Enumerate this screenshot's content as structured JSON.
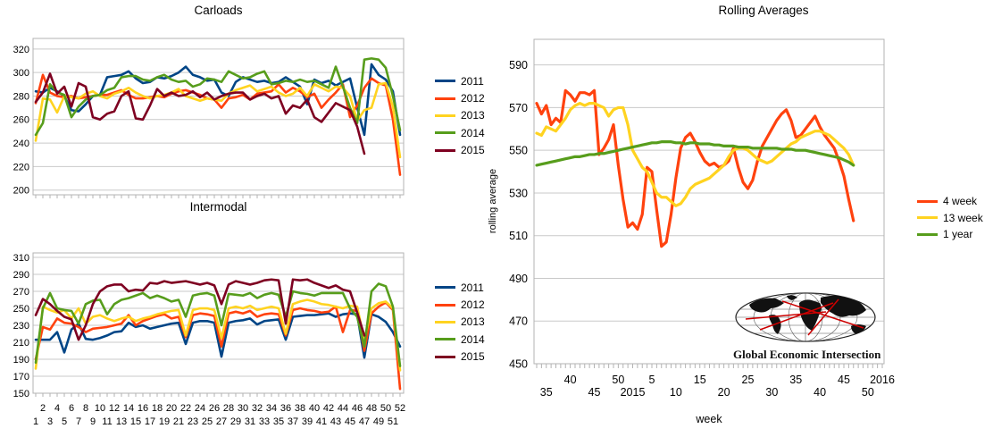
{
  "logo": {
    "text": "Global Economic Intersection"
  },
  "chart_data": [
    {
      "type": "line",
      "title": "Carloads",
      "ylim": [
        200,
        320
      ],
      "y_ticks": [
        200,
        220,
        240,
        260,
        280,
        300,
        320
      ],
      "x_range": "weeks 1-52",
      "grid": true,
      "legend_position": "right",
      "series": [
        {
          "name": "2011",
          "color": "#004586",
          "values": [
            284,
            283,
            287,
            284,
            280,
            268,
            267,
            273,
            280,
            281,
            296,
            297,
            298,
            301,
            295,
            291,
            292,
            296,
            295,
            297,
            300,
            305,
            298,
            296,
            293,
            294,
            283,
            280,
            292,
            296,
            294,
            292,
            293,
            291,
            292,
            296,
            292,
            288,
            273,
            294,
            291,
            293,
            289,
            292,
            295,
            270,
            247,
            307,
            298,
            294,
            284,
            247
          ]
        },
        {
          "name": "2012",
          "color": "#FF420E",
          "values": [
            274,
            298,
            283,
            280,
            279,
            280,
            278,
            279,
            280,
            281,
            281,
            283,
            285,
            281,
            278,
            278,
            279,
            280,
            279,
            282,
            284,
            285,
            283,
            281,
            278,
            277,
            270,
            278,
            279,
            281,
            277,
            282,
            283,
            284,
            290,
            283,
            287,
            284,
            279,
            282,
            270,
            277,
            283,
            290,
            262,
            272,
            287,
            295,
            291,
            289,
            260,
            213
          ]
        },
        {
          "name": "2013",
          "color": "#FFD320",
          "values": [
            242,
            278,
            277,
            266,
            280,
            279,
            278,
            282,
            284,
            280,
            278,
            282,
            284,
            287,
            283,
            280,
            278,
            280,
            281,
            283,
            286,
            280,
            278,
            276,
            278,
            277,
            276,
            282,
            285,
            287,
            289,
            284,
            286,
            288,
            283,
            280,
            282,
            287,
            280,
            290,
            287,
            284,
            288,
            287,
            280,
            259,
            268,
            270,
            290,
            291,
            271,
            228
          ]
        },
        {
          "name": "2014",
          "color": "#579D1C",
          "values": [
            247,
            257,
            290,
            283,
            281,
            262,
            271,
            277,
            280,
            281,
            285,
            287,
            296,
            297,
            297,
            294,
            293,
            296,
            298,
            294,
            292,
            293,
            288,
            290,
            295,
            294,
            292,
            301,
            298,
            295,
            296,
            299,
            301,
            290,
            291,
            293,
            292,
            294,
            292,
            293,
            290,
            287,
            305,
            288,
            270,
            257,
            311,
            312,
            311,
            304,
            280,
            251
          ]
        },
        {
          "name": "2015",
          "color": "#7E0021",
          "values": [
            275,
            283,
            299,
            282,
            288,
            271,
            291,
            288,
            262,
            260,
            265,
            267,
            280,
            284,
            261,
            260,
            272,
            286,
            280,
            283,
            280,
            281,
            284,
            279,
            283,
            277,
            280,
            282,
            283,
            283,
            277,
            280,
            282,
            278,
            280,
            265,
            272,
            270,
            277,
            262,
            258,
            266,
            274,
            271,
            268,
            254,
            231,
            null,
            null,
            null,
            null,
            null
          ]
        }
      ]
    },
    {
      "type": "line",
      "title": "Intermodal",
      "ylim": [
        150,
        310
      ],
      "y_ticks": [
        150,
        170,
        190,
        210,
        230,
        250,
        270,
        290,
        310
      ],
      "x_range": "weeks 1-52",
      "x_labels_row1": [
        "2",
        "4",
        "6",
        "8",
        "10",
        "12",
        "14",
        "16",
        "18",
        "20",
        "22",
        "24",
        "26",
        "28",
        "30",
        "32",
        "34",
        "36",
        "38",
        "40",
        "42",
        "44",
        "46",
        "48",
        "50",
        "52"
      ],
      "x_labels_row2": [
        "1",
        "3",
        "5",
        "7",
        "9",
        "11",
        "13",
        "15",
        "17",
        "19",
        "21",
        "23",
        "25",
        "27",
        "29",
        "31",
        "33",
        "35",
        "37",
        "39",
        "41",
        "43",
        "45",
        "47",
        "49",
        "51"
      ],
      "grid": true,
      "legend_position": "right",
      "series": [
        {
          "name": "2011",
          "color": "#004586",
          "values": [
            213,
            213,
            213,
            222,
            198,
            225,
            232,
            214,
            213,
            215,
            218,
            222,
            223,
            233,
            228,
            230,
            226,
            228,
            230,
            232,
            233,
            208,
            233,
            235,
            235,
            233,
            193,
            233,
            235,
            236,
            238,
            231,
            235,
            236,
            237,
            213,
            240,
            241,
            242,
            242,
            243,
            244,
            240,
            243,
            244,
            243,
            192,
            243,
            240,
            234,
            222,
            205
          ]
        },
        {
          "name": "2012",
          "color": "#FF420E",
          "values": [
            190,
            228,
            225,
            238,
            233,
            232,
            228,
            222,
            226,
            227,
            228,
            230,
            232,
            242,
            230,
            235,
            238,
            241,
            243,
            238,
            240,
            216,
            242,
            244,
            243,
            241,
            205,
            244,
            246,
            244,
            247,
            240,
            243,
            244,
            243,
            218,
            248,
            250,
            248,
            247,
            245,
            246,
            252,
            222,
            248,
            247,
            200,
            244,
            252,
            257,
            248,
            155
          ]
        },
        {
          "name": "2013",
          "color": "#FFD320",
          "values": [
            179,
            252,
            248,
            245,
            248,
            238,
            250,
            232,
            240,
            242,
            238,
            235,
            238,
            240,
            235,
            238,
            240,
            243,
            245,
            247,
            248,
            218,
            248,
            250,
            250,
            248,
            215,
            250,
            252,
            250,
            253,
            248,
            250,
            252,
            250,
            220,
            255,
            258,
            260,
            258,
            255,
            254,
            252,
            250,
            253,
            252,
            212,
            250,
            256,
            258,
            250,
            177
          ]
        },
        {
          "name": "2014",
          "color": "#579D1C",
          "values": [
            186,
            250,
            268,
            250,
            248,
            247,
            232,
            255,
            259,
            260,
            243,
            255,
            260,
            262,
            265,
            268,
            262,
            265,
            262,
            258,
            260,
            240,
            265,
            267,
            268,
            265,
            230,
            267,
            266,
            265,
            268,
            262,
            266,
            268,
            266,
            240,
            270,
            268,
            267,
            265,
            268,
            268,
            268,
            268,
            250,
            240,
            205,
            270,
            279,
            276,
            252,
            182
          ]
        },
        {
          "name": "2015",
          "color": "#7E0021",
          "values": [
            242,
            261,
            255,
            247,
            240,
            237,
            213,
            230,
            255,
            270,
            276,
            278,
            278,
            270,
            272,
            271,
            280,
            279,
            282,
            280,
            281,
            282,
            280,
            278,
            280,
            277,
            255,
            278,
            282,
            280,
            278,
            280,
            283,
            284,
            283,
            232,
            284,
            283,
            284,
            280,
            277,
            274,
            277,
            272,
            270,
            245,
            218,
            null,
            null,
            null,
            null,
            null
          ]
        }
      ]
    },
    {
      "type": "line",
      "title": "Rolling Averages",
      "ylabel": "rolling average",
      "xlabel": "week",
      "ylim": [
        450,
        590
      ],
      "y_ticks": [
        450,
        470,
        490,
        510,
        530,
        550,
        570,
        590
      ],
      "x_range": "2014 week 33 through 2016 week 1",
      "x_ticks": [
        {
          "label": "35",
          "i": 2,
          "row": 2
        },
        {
          "label": "40",
          "i": 7,
          "row": 1
        },
        {
          "label": "45",
          "i": 12,
          "row": 2
        },
        {
          "label": "50",
          "i": 17,
          "row": 1
        },
        {
          "label": "2015",
          "i": 20,
          "row": 2
        },
        {
          "label": "5",
          "i": 24,
          "row": 1
        },
        {
          "label": "10",
          "i": 29,
          "row": 2
        },
        {
          "label": "15",
          "i": 34,
          "row": 1
        },
        {
          "label": "20",
          "i": 39,
          "row": 2
        },
        {
          "label": "25",
          "i": 44,
          "row": 1
        },
        {
          "label": "30",
          "i": 49,
          "row": 2
        },
        {
          "label": "35",
          "i": 54,
          "row": 1
        },
        {
          "label": "40",
          "i": 59,
          "row": 2
        },
        {
          "label": "45",
          "i": 64,
          "row": 1
        },
        {
          "label": "50",
          "i": 69,
          "row": 2
        },
        {
          "label": "2016",
          "i": 72,
          "row": 1
        }
      ],
      "grid": true,
      "legend_position": "right",
      "series": [
        {
          "name": "4 week",
          "color": "#FF420E",
          "values": [
            572,
            567,
            571,
            562,
            565,
            563,
            578,
            576,
            573,
            577,
            577,
            576,
            578,
            548,
            551,
            555,
            562,
            543,
            527,
            514,
            516,
            513,
            520,
            542,
            540,
            522,
            505,
            507,
            520,
            537,
            551,
            556,
            558,
            554,
            549,
            545,
            543,
            544,
            542,
            543,
            545,
            551,
            542,
            535,
            532,
            536,
            545,
            552,
            556,
            560,
            564,
            567,
            569,
            564,
            556,
            557,
            560,
            563,
            566,
            561,
            557,
            554,
            551,
            545,
            538,
            527,
            517
          ]
        },
        {
          "name": "13 week",
          "color": "#FFD320",
          "values": [
            558,
            557,
            561,
            560,
            559,
            562,
            565,
            569,
            571,
            572,
            571,
            572,
            572,
            571,
            570,
            566,
            569,
            570,
            570,
            562,
            550,
            546,
            542,
            540,
            535,
            530,
            528,
            528,
            526,
            524,
            525,
            528,
            532,
            534,
            535,
            536,
            537,
            539,
            541,
            543,
            547,
            550,
            551,
            551,
            550,
            548,
            546,
            545,
            544,
            545,
            547,
            549,
            551,
            553,
            554,
            556,
            557,
            558,
            559,
            559,
            558,
            557,
            555,
            553,
            551,
            548,
            543
          ]
        },
        {
          "name": "1 year",
          "color": "#579D1C",
          "values": [
            543,
            543.5,
            544,
            544.5,
            545,
            545.5,
            546,
            546.5,
            547,
            547,
            547.5,
            548,
            548,
            548.5,
            548.5,
            549,
            549.5,
            550,
            550.5,
            551,
            551.5,
            552,
            552.5,
            553,
            553.5,
            553.5,
            554,
            554,
            554,
            553.5,
            553.5,
            553,
            553.5,
            553.5,
            553,
            553,
            553,
            552.5,
            552.5,
            552,
            552,
            552,
            551.5,
            551.5,
            551.5,
            551,
            551,
            551,
            551,
            551,
            551,
            550.5,
            550.5,
            550.5,
            550,
            550,
            550,
            549.5,
            549,
            548.5,
            548,
            547.5,
            547,
            546.5,
            545.5,
            544.5,
            543
          ]
        }
      ]
    }
  ]
}
